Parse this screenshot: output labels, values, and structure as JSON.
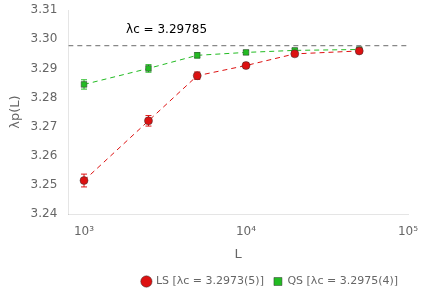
{
  "chart_data": {
    "type": "line",
    "x": [
      1000,
      2500,
      5000,
      10000,
      20000,
      50000
    ],
    "series": [
      {
        "name": "LS [λc = 3.2973(5)]",
        "color": "#dd1111",
        "marker": "circle",
        "line_style": "dashed",
        "values": [
          3.2515,
          3.272,
          3.2875,
          3.291,
          3.295,
          3.296
        ],
        "yerr": [
          0.0022,
          0.0018,
          0.0013,
          0.001,
          0.0008,
          0.0007
        ]
      },
      {
        "name": "QS [λc = 3.2975(4)]",
        "color": "#22bb22",
        "marker": "square",
        "line_style": "dashed",
        "values": [
          3.2845,
          3.29,
          3.2945,
          3.2955,
          3.2962,
          3.2965
        ],
        "yerr": [
          0.0016,
          0.0013,
          0.0009,
          0.0007,
          0.0006,
          0.0005
        ]
      }
    ],
    "xlabel": "L",
    "ylabel": "λp(L)",
    "log": "x",
    "xlim": [
      800,
      100000
    ],
    "xticks": [
      {
        "value": 1000,
        "label": "10³"
      },
      {
        "value": 10000,
        "label": "10⁴"
      },
      {
        "value": 100000,
        "label": "10⁵"
      }
    ],
    "ylim": [
      3.24,
      3.31
    ],
    "yticks": [
      3.24,
      3.25,
      3.26,
      3.27,
      3.28,
      3.29,
      {
        "value": 3.3,
        "label": "3.30"
      },
      3.31
    ],
    "grid": false,
    "legend": "lower right",
    "reference_line": {
      "value": 3.29785,
      "color": "#888888",
      "line_style": "dashed"
    },
    "annotations": [
      {
        "text": "λc = 3.29785"
      }
    ]
  }
}
